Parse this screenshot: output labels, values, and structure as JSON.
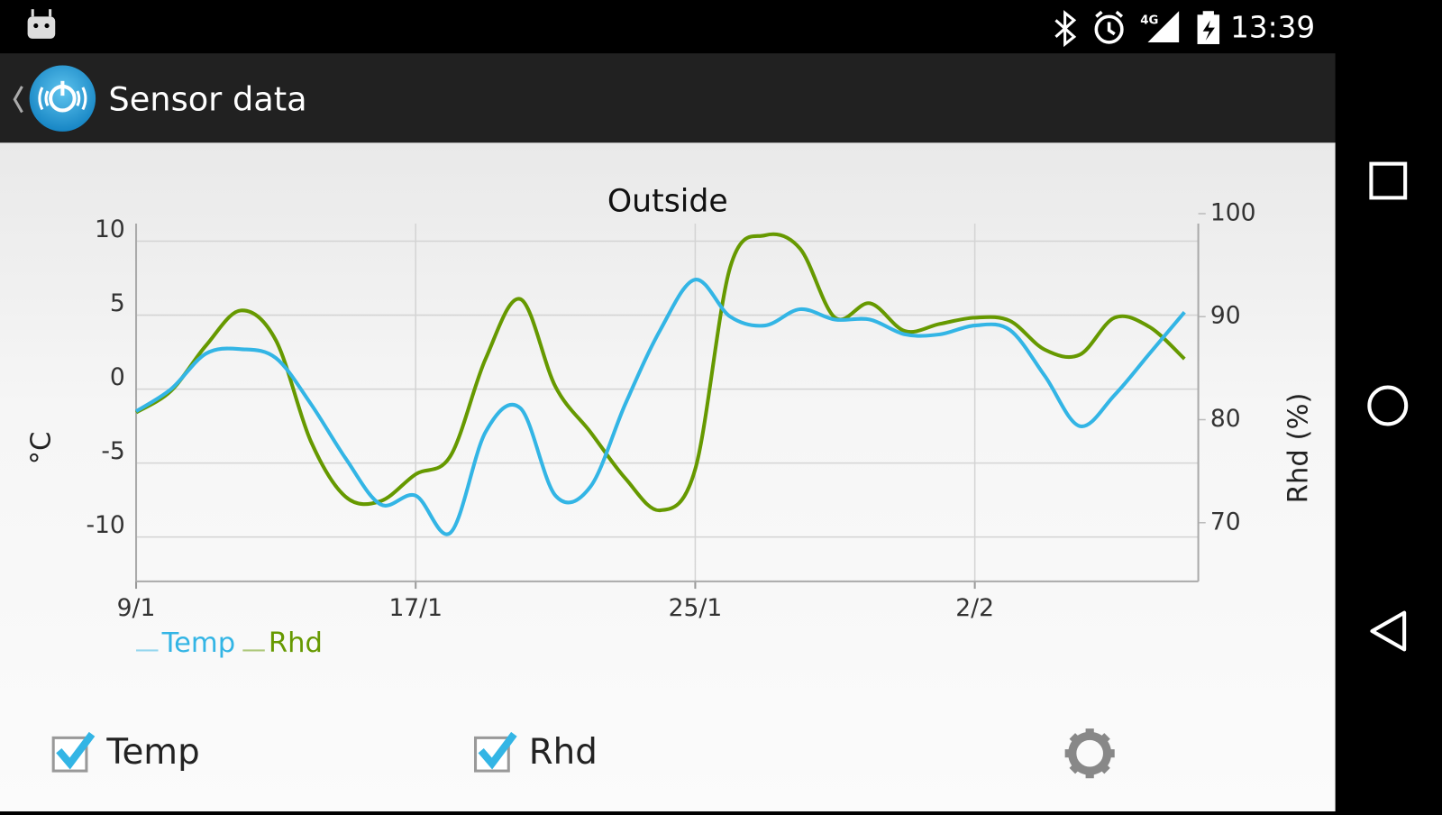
{
  "status_bar": {
    "network": "4G",
    "time": "13:39"
  },
  "action_bar": {
    "title": "Sensor data"
  },
  "chart_data": {
    "type": "line",
    "title": "Outside",
    "y_label": "°C",
    "y2_label": "Rhd (%)",
    "categories": [
      "9/1",
      null,
      null,
      null,
      null,
      null,
      null,
      null,
      "17/1",
      null,
      null,
      null,
      null,
      null,
      null,
      null,
      "25/1",
      null,
      null,
      null,
      null,
      null,
      null,
      null,
      "2/2",
      null,
      null,
      null,
      null,
      null,
      null
    ],
    "series": [
      {
        "name": "Temp",
        "color": "#33b5e5",
        "values": [
          -1.5,
          0,
          2.4,
          2.7,
          2.1,
          -1,
          -4.7,
          -7.8,
          -7.2,
          -9.7,
          -2.9,
          -1.3,
          -7.2,
          -6.6,
          -1,
          4,
          7.4,
          4.9,
          4.3,
          5.4,
          4.7,
          4.7,
          3.7,
          3.7,
          4.3,
          4,
          0.9,
          -2.5,
          -0.4,
          2.4,
          5.2
        ]
      },
      {
        "name": "Rhd",
        "color": "#669900",
        "axis": "y2",
        "values": [
          80.7,
          82.8,
          87.2,
          90.6,
          87.7,
          77.9,
          72.5,
          72.1,
          74.7,
          76.5,
          85.9,
          91.7,
          83.2,
          78.8,
          74.3,
          71.2,
          75.2,
          94.8,
          97.9,
          96.6,
          89.9,
          91.3,
          88.6,
          89.3,
          89.9,
          89.6,
          86.8,
          86.3,
          89.9,
          89,
          85.9
        ]
      }
    ],
    "ylim": [
      -13,
      12
    ],
    "yticks": [
      -10,
      -5,
      0,
      5,
      10
    ],
    "y2lim": [
      64.3,
      100.2
    ],
    "y2ticks": [
      70,
      80,
      90,
      100
    ],
    "grid": true,
    "legend": "bottom-left"
  },
  "controls": {
    "checkboxes": [
      {
        "label": "Temp",
        "checked": true
      },
      {
        "label": "Rhd",
        "checked": true
      }
    ]
  }
}
